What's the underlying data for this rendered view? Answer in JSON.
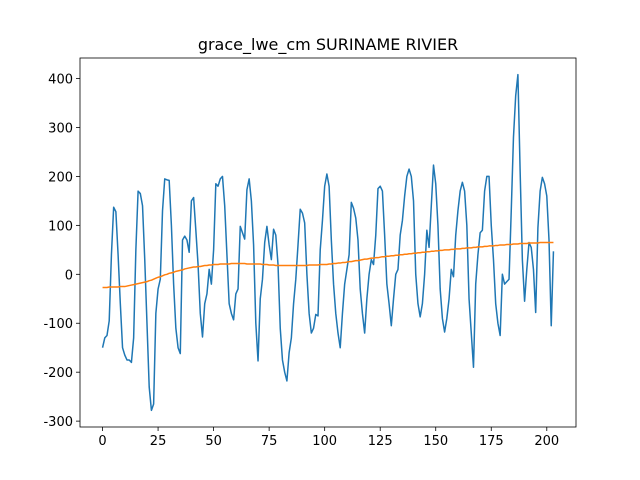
{
  "chart_data": {
    "type": "line",
    "title": "grace_lwe_cm SURINAME RIVIER",
    "xlim": [
      -10.15,
      213.15
    ],
    "xticks": [
      0,
      25,
      50,
      75,
      100,
      125,
      150,
      175,
      200
    ],
    "ylim": [
      -312,
      442
    ],
    "yticks": [
      -300,
      -200,
      -100,
      0,
      100,
      200,
      300,
      400
    ],
    "series": [
      {
        "color": "#1f77b4",
        "values": [
          -150,
          -130,
          -125,
          -95,
          40,
          137,
          128,
          40,
          -60,
          -150,
          -165,
          -175,
          -175,
          -180,
          -130,
          50,
          170,
          165,
          140,
          30,
          -100,
          -230,
          -278,
          -265,
          -80,
          -30,
          -10,
          130,
          195,
          193,
          192,
          100,
          -20,
          -110,
          -150,
          -162,
          70,
          78,
          70,
          45,
          150,
          157,
          90,
          20,
          -80,
          -128,
          -60,
          -40,
          10,
          -20,
          50,
          185,
          180,
          195,
          200,
          140,
          40,
          -60,
          -80,
          -93,
          -40,
          -30,
          98,
          85,
          72,
          173,
          195,
          150,
          60,
          -100,
          -177,
          -50,
          -10,
          65,
          98,
          60,
          30,
          92,
          80,
          20,
          -110,
          -175,
          -200,
          -218,
          -160,
          -130,
          -60,
          -10,
          60,
          133,
          125,
          105,
          0,
          -80,
          -120,
          -110,
          -82,
          -85,
          50,
          110,
          180,
          205,
          180,
          70,
          -20,
          -80,
          -120,
          -150,
          -80,
          -20,
          10,
          40,
          147,
          135,
          115,
          70,
          -30,
          -80,
          -120,
          -50,
          0,
          30,
          20,
          80,
          175,
          180,
          170,
          80,
          -20,
          -60,
          -105,
          -50,
          0,
          10,
          80,
          110,
          160,
          200,
          215,
          200,
          150,
          0,
          -60,
          -87,
          -60,
          0,
          90,
          55,
          140,
          223,
          185,
          100,
          -30,
          -90,
          -118,
          -90,
          -50,
          10,
          -5,
          80,
          130,
          170,
          188,
          170,
          100,
          -50,
          -120,
          -190,
          -20,
          40,
          85,
          90,
          170,
          200,
          200,
          100,
          30,
          -60,
          -100,
          -125,
          0,
          -20,
          -15,
          -10,
          130,
          280,
          365,
          408,
          210,
          30,
          -55,
          10,
          65,
          55,
          10,
          -78,
          95,
          170,
          198,
          185,
          160,
          70,
          -105,
          47
        ]
      },
      {
        "color": "#ff7f0e",
        "values": [
          -27,
          -27,
          -27,
          -26,
          -26,
          -26,
          -26,
          -26,
          -25,
          -25,
          -25,
          -24,
          -23,
          -22,
          -21,
          -20,
          -19,
          -18,
          -17,
          -16,
          -15,
          -13,
          -12,
          -10,
          -8,
          -6,
          -5,
          -3,
          -1,
          0,
          2,
          3,
          4,
          6,
          7,
          8,
          9,
          11,
          12,
          13,
          14,
          15,
          15,
          16,
          16,
          17,
          18,
          18,
          19,
          19,
          20,
          20,
          20,
          21,
          21,
          21,
          21,
          21,
          22,
          22,
          22,
          22,
          22,
          22,
          22,
          21,
          21,
          21,
          21,
          21,
          21,
          21,
          20,
          20,
          20,
          19,
          19,
          19,
          18,
          18,
          18,
          18,
          18,
          18,
          18,
          18,
          18,
          18,
          18,
          18,
          18,
          18,
          18,
          19,
          19,
          19,
          19,
          19,
          20,
          20,
          20,
          20,
          21,
          21,
          22,
          22,
          23,
          23,
          24,
          24,
          25,
          26,
          26,
          27,
          28,
          28,
          29,
          30,
          31,
          31,
          32,
          33,
          33,
          34,
          34,
          35,
          36,
          36,
          37,
          37,
          38,
          38,
          39,
          39,
          40,
          40,
          41,
          41,
          42,
          42,
          43,
          43,
          44,
          44,
          45,
          45,
          46,
          46,
          47,
          47,
          48,
          48,
          49,
          49,
          50,
          50,
          50,
          51,
          51,
          52,
          52,
          52,
          53,
          53,
          54,
          54,
          54,
          55,
          55,
          56,
          56,
          56,
          57,
          57,
          58,
          58,
          58,
          59,
          59,
          60,
          60,
          60,
          61,
          61,
          61,
          62,
          62,
          62,
          63,
          63,
          63,
          63,
          64,
          64,
          64,
          64,
          64,
          65,
          65,
          65,
          65,
          65,
          65,
          65
        ]
      }
    ]
  }
}
